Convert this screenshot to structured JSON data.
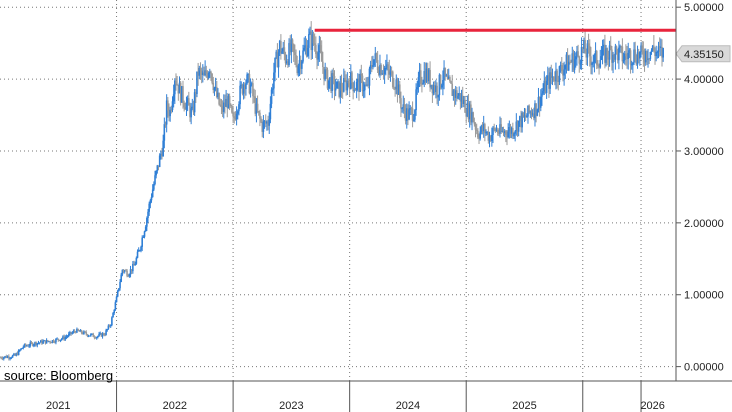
{
  "source": "source: Bloomberg",
  "last_price_label": "4.35150",
  "colors": {
    "up": "#2f7fd6",
    "down": "#9a9a9a",
    "resistance": "#e8243c",
    "grid": "#777777",
    "price_tag_bg": "#d9d9d9",
    "axis": "#555555"
  },
  "chart_data": {
    "type": "candlestick",
    "ylim": [
      -0.2,
      5.1
    ],
    "yticks": [
      0,
      1,
      2,
      3,
      4,
      5
    ],
    "ytick_labels": [
      "0.00000",
      "1.00000",
      "2.00000",
      "3.00000",
      "4.00000",
      "5.00000"
    ],
    "xlim": [
      2020.5,
      2026.3
    ],
    "year_labels": [
      "2021",
      "2022",
      "2023",
      "2024",
      "2025",
      "2026"
    ],
    "year_label_x": [
      2021.0,
      2022.0,
      2023.0,
      2024.0,
      2025.0,
      2026.1
    ],
    "year_boundaries": [
      2021.5,
      2022.5,
      2023.5,
      2024.5,
      2025.5,
      2026.0
    ],
    "last_value": 4.3515,
    "resistance": {
      "value": 4.68,
      "x_start": 2023.2,
      "x_end": 2026.3
    },
    "series": [
      {
        "x": [
          2020.5,
          2020.63,
          2020.7,
          2020.78,
          2020.85,
          2020.95,
          2021.05,
          2021.15,
          2021.25,
          2021.33,
          2021.4,
          2021.45,
          2021.5,
          2021.55,
          2021.6,
          2021.65,
          2021.7,
          2021.75,
          2021.8,
          2021.85,
          2021.9,
          2021.93,
          2021.96,
          2022.0,
          2022.05,
          2022.1,
          2022.15,
          2022.2,
          2022.25,
          2022.3,
          2022.35,
          2022.4,
          2022.45,
          2022.5,
          2022.55,
          2022.6,
          2022.65,
          2022.7,
          2022.75,
          2022.8,
          2022.85,
          2022.9,
          2022.95,
          2023.0,
          2023.05,
          2023.1,
          2023.15,
          2023.2,
          2023.25,
          2023.3,
          2023.35,
          2023.4,
          2023.45,
          2023.5,
          2023.55,
          2023.6,
          2023.65,
          2023.7,
          2023.75,
          2023.8,
          2023.85,
          2023.9,
          2023.95,
          2024.0,
          2024.05,
          2024.1,
          2024.15,
          2024.2,
          2024.25,
          2024.3,
          2024.35,
          2024.4,
          2024.45,
          2024.5,
          2024.55,
          2024.6,
          2024.65,
          2024.7,
          2024.75,
          2024.8,
          2024.85,
          2024.9,
          2024.95,
          2025.0,
          2025.05,
          2025.1,
          2025.15,
          2025.2,
          2025.25,
          2025.3,
          2025.35,
          2025.4,
          2025.45,
          2025.5,
          2025.55,
          2025.6,
          2025.65,
          2025.7,
          2025.75,
          2025.8,
          2025.85,
          2025.9,
          2025.95,
          2026.0,
          2026.05,
          2026.1,
          2026.15,
          2026.2
        ],
        "y": [
          0.13,
          0.15,
          0.28,
          0.32,
          0.34,
          0.36,
          0.4,
          0.5,
          0.45,
          0.42,
          0.46,
          0.6,
          0.95,
          1.35,
          1.3,
          1.4,
          1.65,
          2.0,
          2.4,
          2.75,
          3.1,
          3.6,
          3.55,
          4.05,
          3.8,
          3.65,
          3.5,
          4.1,
          4.0,
          4.2,
          3.8,
          3.55,
          3.7,
          3.4,
          3.75,
          4.0,
          3.9,
          3.55,
          3.35,
          3.4,
          4.1,
          4.45,
          4.3,
          4.4,
          4.2,
          4.35,
          4.55,
          4.5,
          4.3,
          4.0,
          3.95,
          3.85,
          3.9,
          4.0,
          3.9,
          3.95,
          3.85,
          4.3,
          4.2,
          4.15,
          4.05,
          3.95,
          3.6,
          3.5,
          3.55,
          4.0,
          4.1,
          3.95,
          3.85,
          4.05,
          3.9,
          3.8,
          3.75,
          3.6,
          3.5,
          3.25,
          3.3,
          3.2,
          3.3,
          3.25,
          3.28,
          3.3,
          3.4,
          3.45,
          3.55,
          3.6,
          3.8,
          3.95,
          4.05,
          4.1,
          4.2,
          4.25,
          4.3,
          4.4,
          4.35,
          4.25,
          4.3,
          4.35,
          4.38,
          4.36,
          4.3,
          4.34,
          4.35,
          4.32,
          4.38,
          4.4,
          4.36,
          4.35
        ]
      }
    ]
  }
}
